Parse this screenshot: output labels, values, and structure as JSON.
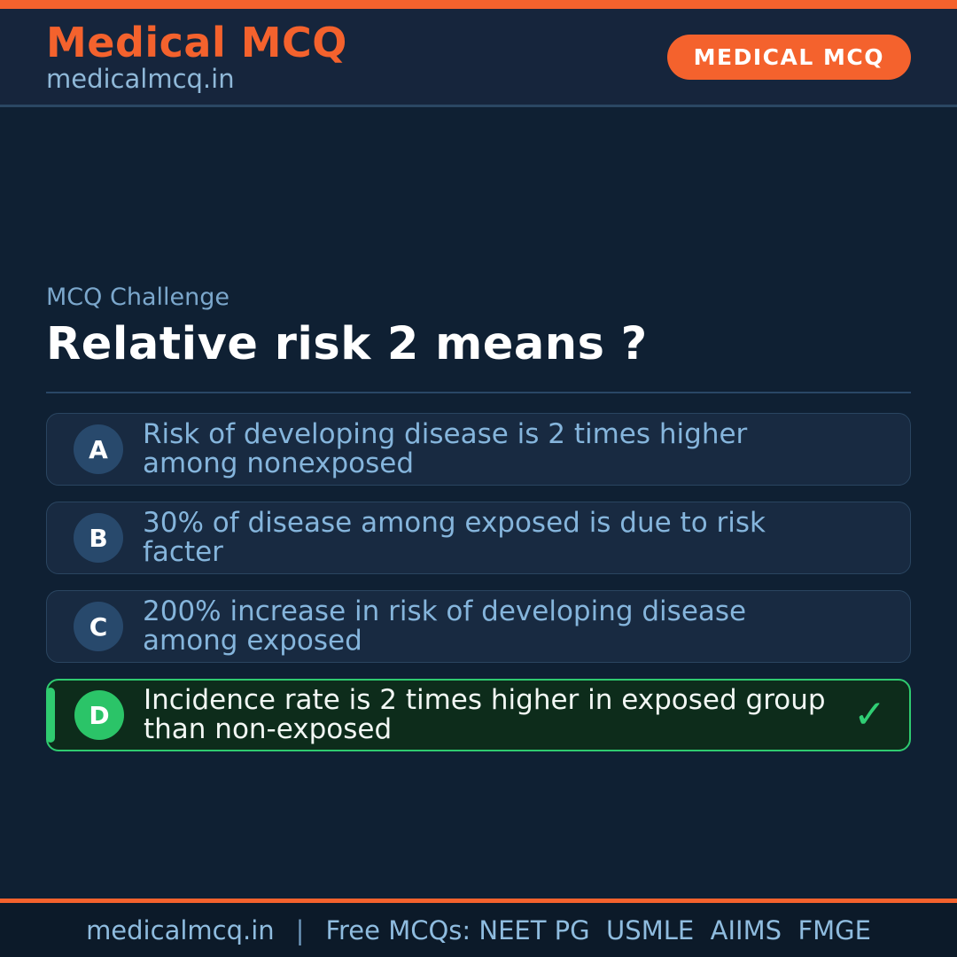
{
  "page": {
    "background_color": "#0F2033",
    "accent_color": "#F4622D"
  },
  "header": {
    "brand_title": "Medical MCQ",
    "brand_subtitle": "medicalmcq.in",
    "badge_label": "MEDICAL MCQ"
  },
  "question": {
    "eyebrow": "MCQ Challenge",
    "title": "Relative risk 2 means ?"
  },
  "options": [
    {
      "letter": "A",
      "text": "Risk of developing disease is 2 times higher among nonexposed",
      "correct": false
    },
    {
      "letter": "B",
      "text": "30% of disease among exposed is due to risk facter",
      "correct": false
    },
    {
      "letter": "C",
      "text": "200% increase in risk of developing disease among exposed",
      "correct": false
    },
    {
      "letter": "D",
      "text": "Incidence rate is 2 times higher in exposed group than non-exposed",
      "correct": true
    }
  ],
  "icons": {
    "check": "✓"
  },
  "colors": {
    "correct_green": "#2FCB70",
    "option_text_blue": "#85B5DC",
    "option_card_navy": "#182A41",
    "header_navy": "#16253C",
    "footer_navy": "#0C1A29"
  },
  "footer": {
    "site": "medicalmcq.in",
    "separator": "|",
    "tagline": "Free MCQs: NEET PG  USMLE  AIIMS  FMGE"
  }
}
